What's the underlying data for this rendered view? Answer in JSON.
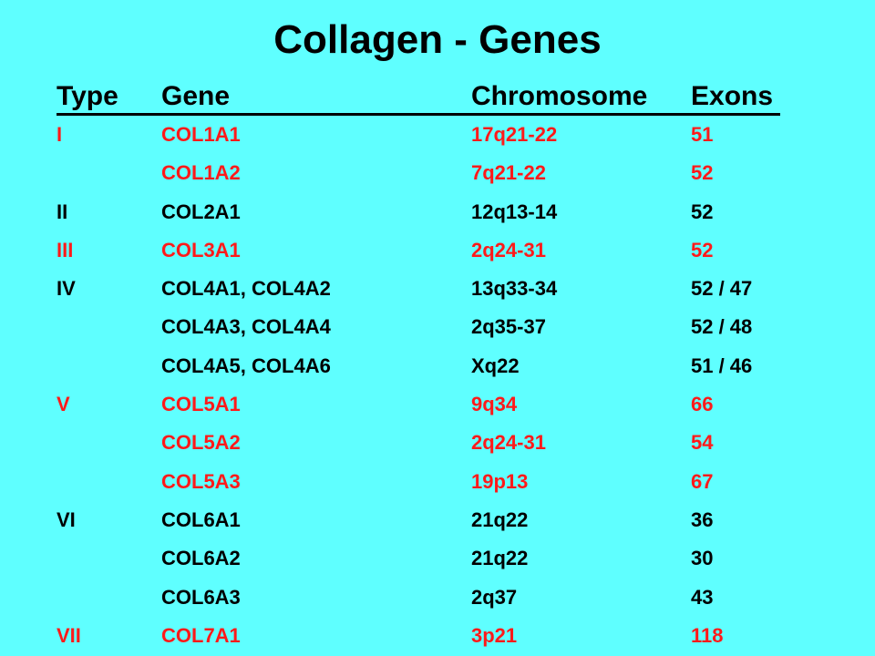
{
  "title": "Collagen - Genes",
  "colors": {
    "background": "#5FFFFF",
    "highlight": "#FF1A1A",
    "normal": "#000000"
  },
  "headers": {
    "type": "Type",
    "gene": "Gene",
    "chromosome": "Chromosome",
    "exons": "Exons"
  },
  "rows": [
    {
      "type": "I",
      "gene": "COL1A1",
      "chromosome": "17q21-22",
      "exons": "51",
      "color": "red"
    },
    {
      "type": "",
      "gene": "COL1A2",
      "chromosome": "7q21-22",
      "exons": "52",
      "color": "red"
    },
    {
      "type": "II",
      "gene": "COL2A1",
      "chromosome": "12q13-14",
      "exons": "52",
      "color": "black"
    },
    {
      "type": "III",
      "gene": "COL3A1",
      "chromosome": "2q24-31",
      "exons": "52",
      "color": "red"
    },
    {
      "type": "IV",
      "gene": "COL4A1, COL4A2",
      "chromosome": "13q33-34",
      "exons": "52 / 47",
      "color": "black"
    },
    {
      "type": "",
      "gene": "COL4A3, COL4A4",
      "chromosome": "2q35-37",
      "exons": "52 / 48",
      "color": "black"
    },
    {
      "type": "",
      "gene": "COL4A5, COL4A6",
      "chromosome": "Xq22",
      "exons": "51 / 46",
      "color": "black"
    },
    {
      "type": "V",
      "gene": "COL5A1",
      "chromosome": "9q34",
      "exons": "66",
      "color": "red"
    },
    {
      "type": "",
      "gene": "COL5A2",
      "chromosome": "2q24-31",
      "exons": "54",
      "color": "red"
    },
    {
      "type": "",
      "gene": "COL5A3",
      "chromosome": "19p13",
      "exons": "67",
      "color": "red"
    },
    {
      "type": "VI",
      "gene": "COL6A1",
      "chromosome": "21q22",
      "exons": "36",
      "color": "black"
    },
    {
      "type": "",
      "gene": "COL6A2",
      "chromosome": "21q22",
      "exons": "30",
      "color": "black"
    },
    {
      "type": "",
      "gene": "COL6A3",
      "chromosome": "2q37",
      "exons": "43",
      "color": "black"
    },
    {
      "type": "VII",
      "gene": "COL7A1",
      "chromosome": "3p21",
      "exons": "118",
      "color": "red"
    }
  ]
}
